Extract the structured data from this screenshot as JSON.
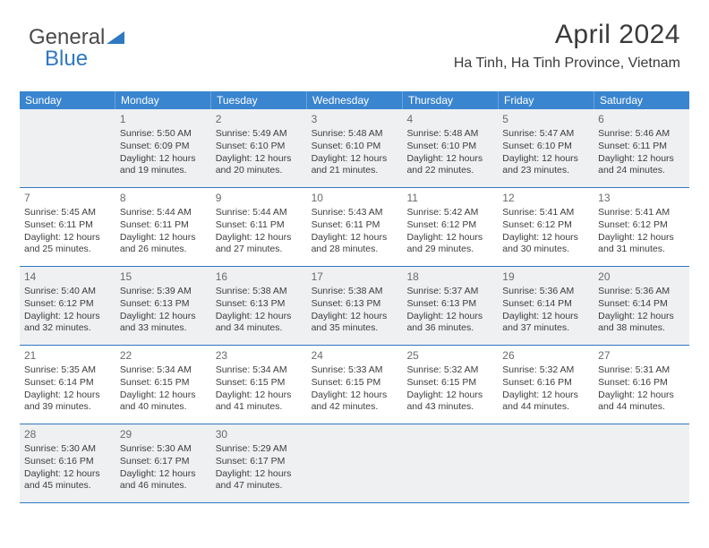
{
  "logo": {
    "text1": "General",
    "text2": "Blue",
    "color1": "#4a4a4a",
    "color2": "#2f78c2",
    "tri_color": "#2f78c2"
  },
  "header": {
    "month_title": "April 2024",
    "location": "Ha Tinh, Ha Tinh Province, Vietnam"
  },
  "style": {
    "dow_bg": "#3a85d0",
    "dow_text": "#ffffff",
    "row_border": "#2f78c2",
    "shade_bg": "#eef0f2",
    "cell_text": "#3d3d3d",
    "daynum_text": "#6a6a6a"
  },
  "days_of_week": [
    "Sunday",
    "Monday",
    "Tuesday",
    "Wednesday",
    "Thursday",
    "Friday",
    "Saturday"
  ],
  "weeks": [
    [
      {
        "n": "",
        "sr": "",
        "ss": "",
        "dl1": "",
        "dl2": ""
      },
      {
        "n": "1",
        "sr": "Sunrise: 5:50 AM",
        "ss": "Sunset: 6:09 PM",
        "dl1": "Daylight: 12 hours",
        "dl2": "and 19 minutes."
      },
      {
        "n": "2",
        "sr": "Sunrise: 5:49 AM",
        "ss": "Sunset: 6:10 PM",
        "dl1": "Daylight: 12 hours",
        "dl2": "and 20 minutes."
      },
      {
        "n": "3",
        "sr": "Sunrise: 5:48 AM",
        "ss": "Sunset: 6:10 PM",
        "dl1": "Daylight: 12 hours",
        "dl2": "and 21 minutes."
      },
      {
        "n": "4",
        "sr": "Sunrise: 5:48 AM",
        "ss": "Sunset: 6:10 PM",
        "dl1": "Daylight: 12 hours",
        "dl2": "and 22 minutes."
      },
      {
        "n": "5",
        "sr": "Sunrise: 5:47 AM",
        "ss": "Sunset: 6:10 PM",
        "dl1": "Daylight: 12 hours",
        "dl2": "and 23 minutes."
      },
      {
        "n": "6",
        "sr": "Sunrise: 5:46 AM",
        "ss": "Sunset: 6:11 PM",
        "dl1": "Daylight: 12 hours",
        "dl2": "and 24 minutes."
      }
    ],
    [
      {
        "n": "7",
        "sr": "Sunrise: 5:45 AM",
        "ss": "Sunset: 6:11 PM",
        "dl1": "Daylight: 12 hours",
        "dl2": "and 25 minutes."
      },
      {
        "n": "8",
        "sr": "Sunrise: 5:44 AM",
        "ss": "Sunset: 6:11 PM",
        "dl1": "Daylight: 12 hours",
        "dl2": "and 26 minutes."
      },
      {
        "n": "9",
        "sr": "Sunrise: 5:44 AM",
        "ss": "Sunset: 6:11 PM",
        "dl1": "Daylight: 12 hours",
        "dl2": "and 27 minutes."
      },
      {
        "n": "10",
        "sr": "Sunrise: 5:43 AM",
        "ss": "Sunset: 6:11 PM",
        "dl1": "Daylight: 12 hours",
        "dl2": "and 28 minutes."
      },
      {
        "n": "11",
        "sr": "Sunrise: 5:42 AM",
        "ss": "Sunset: 6:12 PM",
        "dl1": "Daylight: 12 hours",
        "dl2": "and 29 minutes."
      },
      {
        "n": "12",
        "sr": "Sunrise: 5:41 AM",
        "ss": "Sunset: 6:12 PM",
        "dl1": "Daylight: 12 hours",
        "dl2": "and 30 minutes."
      },
      {
        "n": "13",
        "sr": "Sunrise: 5:41 AM",
        "ss": "Sunset: 6:12 PM",
        "dl1": "Daylight: 12 hours",
        "dl2": "and 31 minutes."
      }
    ],
    [
      {
        "n": "14",
        "sr": "Sunrise: 5:40 AM",
        "ss": "Sunset: 6:12 PM",
        "dl1": "Daylight: 12 hours",
        "dl2": "and 32 minutes."
      },
      {
        "n": "15",
        "sr": "Sunrise: 5:39 AM",
        "ss": "Sunset: 6:13 PM",
        "dl1": "Daylight: 12 hours",
        "dl2": "and 33 minutes."
      },
      {
        "n": "16",
        "sr": "Sunrise: 5:38 AM",
        "ss": "Sunset: 6:13 PM",
        "dl1": "Daylight: 12 hours",
        "dl2": "and 34 minutes."
      },
      {
        "n": "17",
        "sr": "Sunrise: 5:38 AM",
        "ss": "Sunset: 6:13 PM",
        "dl1": "Daylight: 12 hours",
        "dl2": "and 35 minutes."
      },
      {
        "n": "18",
        "sr": "Sunrise: 5:37 AM",
        "ss": "Sunset: 6:13 PM",
        "dl1": "Daylight: 12 hours",
        "dl2": "and 36 minutes."
      },
      {
        "n": "19",
        "sr": "Sunrise: 5:36 AM",
        "ss": "Sunset: 6:14 PM",
        "dl1": "Daylight: 12 hours",
        "dl2": "and 37 minutes."
      },
      {
        "n": "20",
        "sr": "Sunrise: 5:36 AM",
        "ss": "Sunset: 6:14 PM",
        "dl1": "Daylight: 12 hours",
        "dl2": "and 38 minutes."
      }
    ],
    [
      {
        "n": "21",
        "sr": "Sunrise: 5:35 AM",
        "ss": "Sunset: 6:14 PM",
        "dl1": "Daylight: 12 hours",
        "dl2": "and 39 minutes."
      },
      {
        "n": "22",
        "sr": "Sunrise: 5:34 AM",
        "ss": "Sunset: 6:15 PM",
        "dl1": "Daylight: 12 hours",
        "dl2": "and 40 minutes."
      },
      {
        "n": "23",
        "sr": "Sunrise: 5:34 AM",
        "ss": "Sunset: 6:15 PM",
        "dl1": "Daylight: 12 hours",
        "dl2": "and 41 minutes."
      },
      {
        "n": "24",
        "sr": "Sunrise: 5:33 AM",
        "ss": "Sunset: 6:15 PM",
        "dl1": "Daylight: 12 hours",
        "dl2": "and 42 minutes."
      },
      {
        "n": "25",
        "sr": "Sunrise: 5:32 AM",
        "ss": "Sunset: 6:15 PM",
        "dl1": "Daylight: 12 hours",
        "dl2": "and 43 minutes."
      },
      {
        "n": "26",
        "sr": "Sunrise: 5:32 AM",
        "ss": "Sunset: 6:16 PM",
        "dl1": "Daylight: 12 hours",
        "dl2": "and 44 minutes."
      },
      {
        "n": "27",
        "sr": "Sunrise: 5:31 AM",
        "ss": "Sunset: 6:16 PM",
        "dl1": "Daylight: 12 hours",
        "dl2": "and 44 minutes."
      }
    ],
    [
      {
        "n": "28",
        "sr": "Sunrise: 5:30 AM",
        "ss": "Sunset: 6:16 PM",
        "dl1": "Daylight: 12 hours",
        "dl2": "and 45 minutes."
      },
      {
        "n": "29",
        "sr": "Sunrise: 5:30 AM",
        "ss": "Sunset: 6:17 PM",
        "dl1": "Daylight: 12 hours",
        "dl2": "and 46 minutes."
      },
      {
        "n": "30",
        "sr": "Sunrise: 5:29 AM",
        "ss": "Sunset: 6:17 PM",
        "dl1": "Daylight: 12 hours",
        "dl2": "and 47 minutes."
      },
      {
        "n": "",
        "sr": "",
        "ss": "",
        "dl1": "",
        "dl2": ""
      },
      {
        "n": "",
        "sr": "",
        "ss": "",
        "dl1": "",
        "dl2": ""
      },
      {
        "n": "",
        "sr": "",
        "ss": "",
        "dl1": "",
        "dl2": ""
      },
      {
        "n": "",
        "sr": "",
        "ss": "",
        "dl1": "",
        "dl2": ""
      }
    ]
  ]
}
